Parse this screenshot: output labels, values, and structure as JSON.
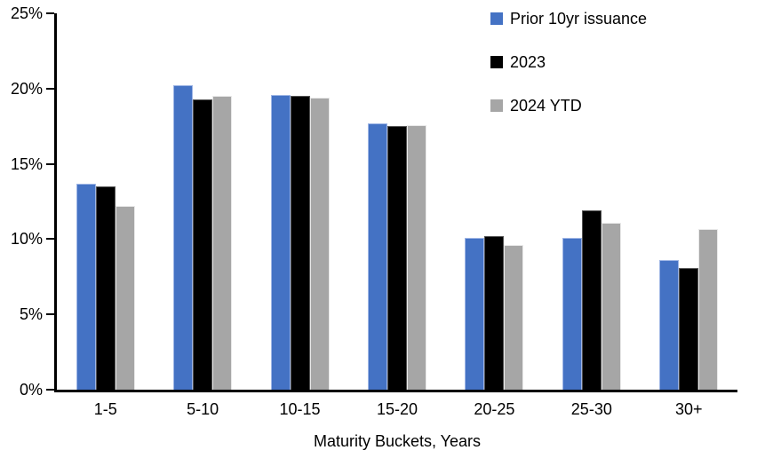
{
  "chart_data": {
    "type": "bar",
    "title": "",
    "xlabel": "Maturity Buckets, Years",
    "ylabel": "",
    "ylim": [
      0,
      25
    ],
    "y_ticks": [
      "0%",
      "5%",
      "10%",
      "15%",
      "20%",
      "25%"
    ],
    "grid": false,
    "legend_position": "top-right",
    "background_color": "#ffffff",
    "axis_color": "#000000",
    "categories": [
      "1-5",
      "5-10",
      "10-15",
      "15-20",
      "20-25",
      "25-30",
      "30+"
    ],
    "series": [
      {
        "name": "Prior 10yr issuance",
        "color": "#4472C4",
        "border": "#9EB5E5",
        "values": [
          13.7,
          20.2,
          19.6,
          17.7,
          10.1,
          10.1,
          8.6
        ]
      },
      {
        "name": "2023",
        "color": "#000000",
        "border": "#545454",
        "values": [
          13.5,
          19.3,
          19.5,
          17.5,
          10.2,
          11.9,
          8.1
        ]
      },
      {
        "name": "2024 YTD",
        "color": "#A6A6A6",
        "border": "#E9E9E9",
        "values": [
          12.2,
          19.5,
          19.4,
          17.6,
          9.6,
          11.1,
          10.7
        ]
      }
    ]
  }
}
